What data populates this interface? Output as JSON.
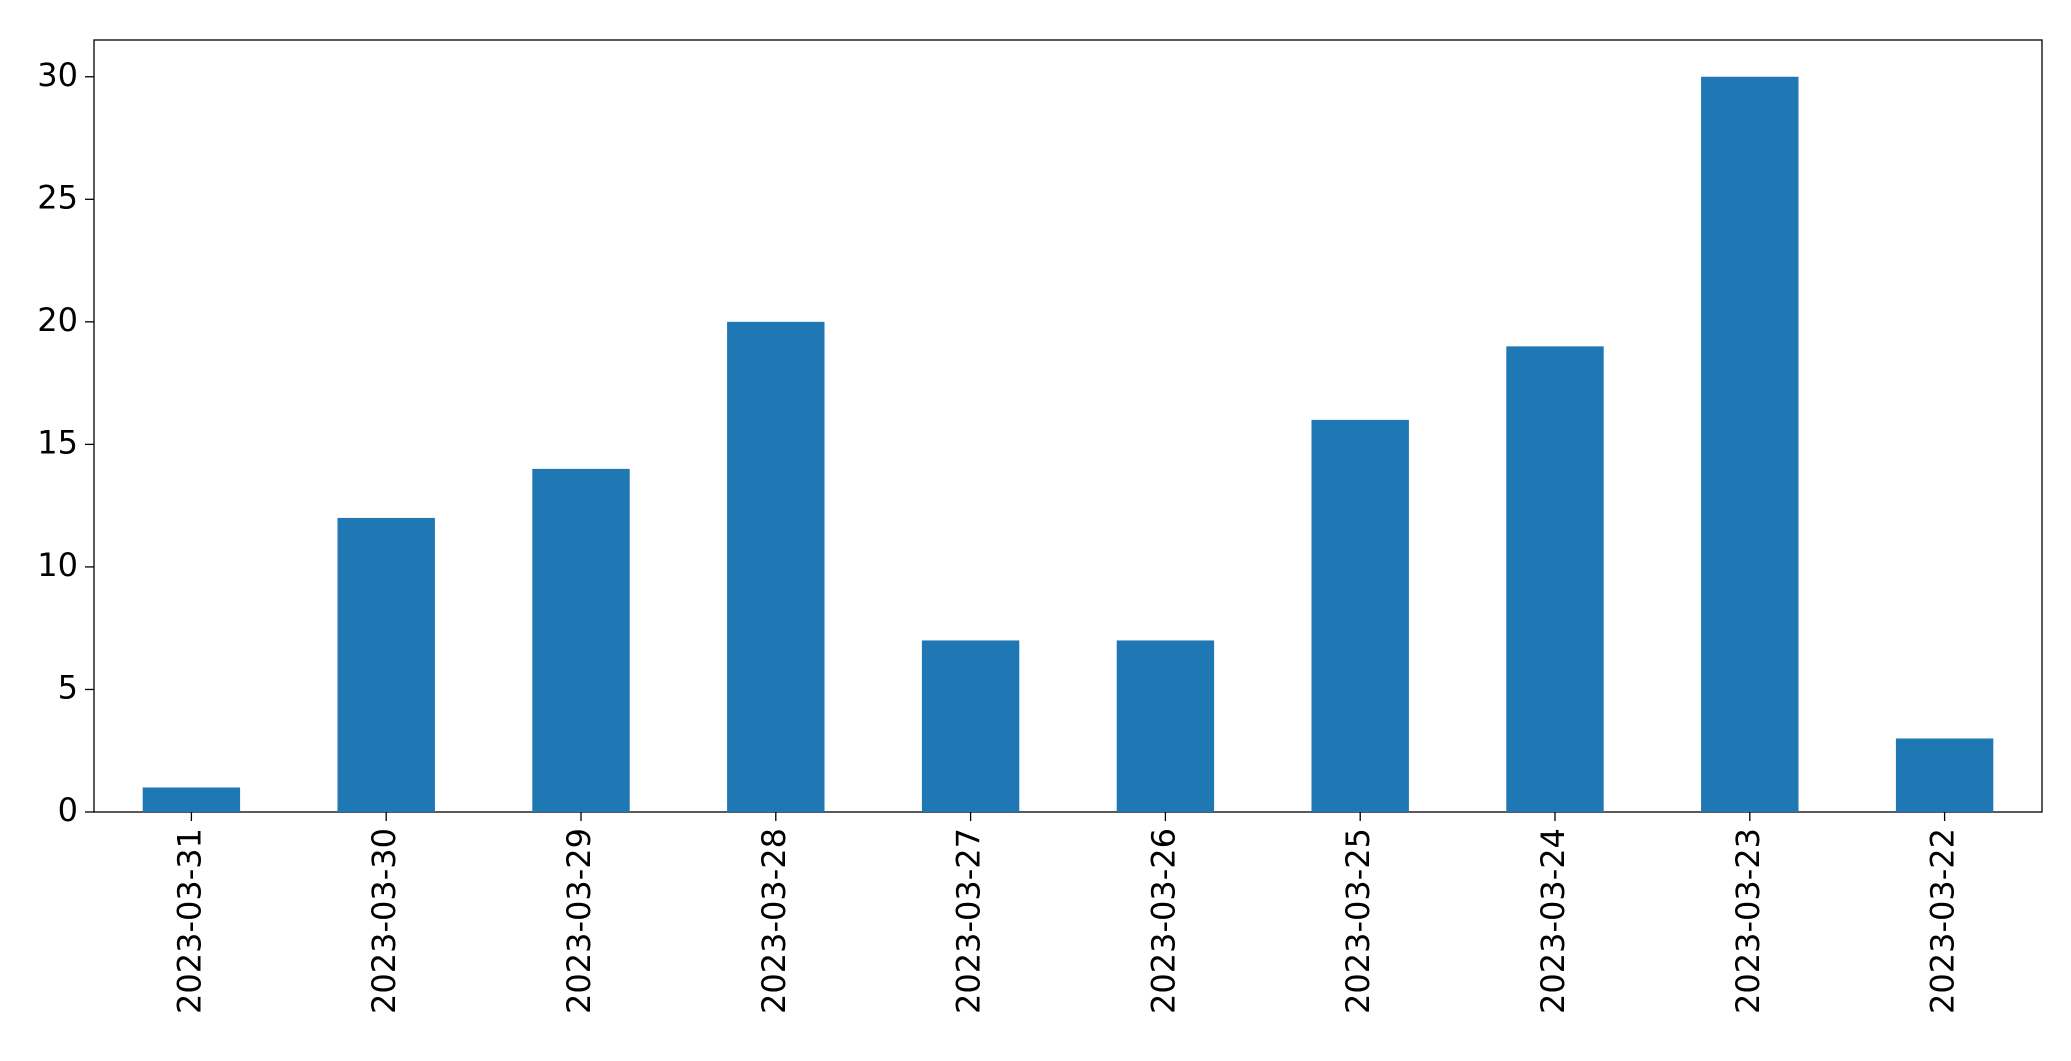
{
  "chart_data": {
    "type": "bar",
    "categories": [
      "2023-03-31",
      "2023-03-30",
      "2023-03-29",
      "2023-03-28",
      "2023-03-27",
      "2023-03-26",
      "2023-03-25",
      "2023-03-24",
      "2023-03-23",
      "2023-03-22"
    ],
    "values": [
      1,
      12,
      14,
      20,
      7,
      7,
      16,
      19,
      30,
      3
    ],
    "color": "#1f77b4",
    "ylim": [
      0,
      31.5
    ],
    "yticks": [
      0,
      5,
      10,
      15,
      20,
      25,
      30
    ],
    "grid": false
  }
}
